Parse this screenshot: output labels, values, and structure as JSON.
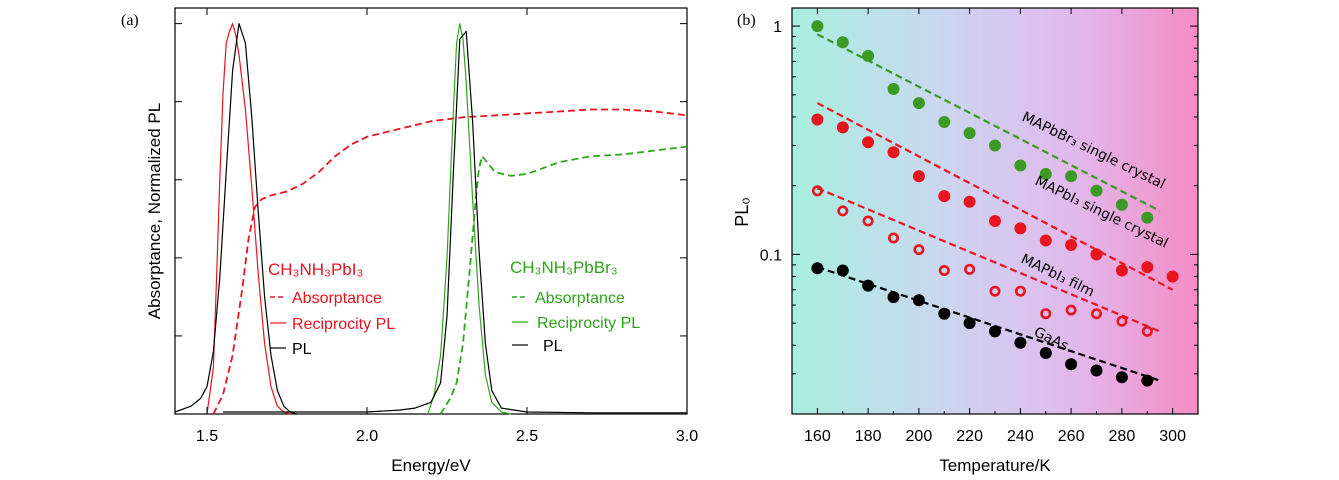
{
  "chart_data": [
    {
      "panel_label": "(a)",
      "type": "line",
      "xlabel": "Energy/eV",
      "ylabel": "Absorptance, Normalized PL",
      "xlim": [
        1.4,
        3.0
      ],
      "ylim": [
        0,
        1.04
      ],
      "x_ticks": [
        1.5,
        2.0,
        2.5,
        3.0
      ],
      "x_tick_labels": [
        "1.5",
        "2.0",
        "2.5",
        "3.0"
      ],
      "y_ticks": [
        0.2,
        0.4,
        0.6,
        0.8,
        1.0
      ],
      "y_tick_labels_shown": false,
      "colors": {
        "mapbi": "#e8141e",
        "mapbbr": "#2ea51a",
        "pl": "#000000"
      },
      "legends": [
        {
          "title": "CH₃NH₃PbI₃",
          "color": "#e8141e",
          "entries": [
            {
              "label": "Absorptance",
              "style": "dashed"
            },
            {
              "label": "Reciprocity PL",
              "style": "solid"
            },
            {
              "label": "PL",
              "style": "solid",
              "color": "#000000"
            }
          ]
        },
        {
          "title": "CH₃NH₃PbBr₃",
          "color": "#2ea51a",
          "entries": [
            {
              "label": "Absorptance",
              "style": "dashed"
            },
            {
              "label": "Reciprocity PL",
              "style": "solid"
            },
            {
              "label": "PL",
              "style": "solid",
              "color": "#000000"
            }
          ]
        }
      ],
      "series": [
        {
          "material": "CH3NH3PbI3",
          "kind": "Absorptance",
          "style": "dashed",
          "color": "#e8141e",
          "x": [
            1.52,
            1.55,
            1.58,
            1.61,
            1.63,
            1.65,
            1.67,
            1.7,
            1.75,
            1.8,
            1.85,
            1.9,
            1.95,
            2.0,
            2.1,
            2.2,
            2.3,
            2.4,
            2.5,
            2.6,
            2.7,
            2.8,
            2.9,
            3.0
          ],
          "y": [
            0.0,
            0.05,
            0.15,
            0.32,
            0.45,
            0.53,
            0.55,
            0.56,
            0.57,
            0.59,
            0.62,
            0.66,
            0.69,
            0.71,
            0.73,
            0.75,
            0.76,
            0.765,
            0.77,
            0.775,
            0.78,
            0.78,
            0.775,
            0.765
          ]
        },
        {
          "material": "CH3NH3PbI3",
          "kind": "Reciprocity PL",
          "style": "solid",
          "color": "#e8141e",
          "x": [
            1.5,
            1.52,
            1.53,
            1.54,
            1.55,
            1.56,
            1.57,
            1.58,
            1.59,
            1.6,
            1.62,
            1.64,
            1.66,
            1.68,
            1.7,
            1.72,
            1.74,
            1.76
          ],
          "y": [
            0.0,
            0.12,
            0.35,
            0.6,
            0.82,
            0.95,
            0.98,
            1.0,
            0.97,
            0.92,
            0.78,
            0.58,
            0.36,
            0.18,
            0.07,
            0.02,
            0.005,
            0.0
          ]
        },
        {
          "material": "CH3NH3PbI3",
          "kind": "PL",
          "style": "solid",
          "color": "#000000",
          "x": [
            1.4,
            1.45,
            1.48,
            1.5,
            1.52,
            1.54,
            1.56,
            1.58,
            1.6,
            1.62,
            1.64,
            1.66,
            1.68,
            1.7,
            1.72,
            1.74,
            1.76,
            1.78
          ],
          "y": [
            0.005,
            0.02,
            0.04,
            0.07,
            0.16,
            0.35,
            0.62,
            0.88,
            1.0,
            0.95,
            0.76,
            0.52,
            0.3,
            0.15,
            0.06,
            0.02,
            0.005,
            0.0
          ]
        },
        {
          "material": "CH3NH3PbBr3",
          "kind": "Absorptance",
          "style": "dashed",
          "color": "#2ea51a",
          "x": [
            2.23,
            2.26,
            2.28,
            2.3,
            2.32,
            2.34,
            2.35,
            2.36,
            2.38,
            2.4,
            2.45,
            2.5,
            2.55,
            2.6,
            2.7,
            2.8,
            2.9,
            3.0
          ],
          "y": [
            0.0,
            0.04,
            0.08,
            0.18,
            0.36,
            0.55,
            0.63,
            0.66,
            0.64,
            0.62,
            0.61,
            0.615,
            0.63,
            0.645,
            0.66,
            0.665,
            0.675,
            0.685
          ]
        },
        {
          "material": "CH3NH3PbBr3",
          "kind": "Reciprocity PL",
          "style": "solid",
          "color": "#2ea51a",
          "x": [
            2.19,
            2.21,
            2.23,
            2.25,
            2.27,
            2.28,
            2.29,
            2.3,
            2.31,
            2.33,
            2.35,
            2.37,
            2.39,
            2.42,
            2.45
          ],
          "y": [
            0.0,
            0.05,
            0.15,
            0.4,
            0.78,
            0.95,
            1.0,
            0.96,
            0.85,
            0.55,
            0.28,
            0.1,
            0.03,
            0.005,
            0.0
          ]
        },
        {
          "material": "CH3NH3PbBr3",
          "kind": "PL",
          "style": "solid",
          "color": "#000000",
          "x": [
            1.55,
            1.8,
            2.0,
            2.1,
            2.15,
            2.2,
            2.23,
            2.25,
            2.27,
            2.29,
            2.31,
            2.33,
            2.35,
            2.37,
            2.39,
            2.42,
            2.5,
            2.7,
            3.0
          ],
          "y": [
            0.005,
            0.005,
            0.005,
            0.01,
            0.015,
            0.03,
            0.08,
            0.25,
            0.62,
            0.96,
            0.98,
            0.75,
            0.42,
            0.18,
            0.06,
            0.015,
            0.005,
            0.003,
            0.003
          ]
        }
      ]
    },
    {
      "panel_label": "(b)",
      "type": "scatter",
      "xlabel": "Temperature/K",
      "ylabel": "PL₀",
      "xlim": [
        150,
        310
      ],
      "ylim": [
        0.02,
        1.2
      ],
      "y_scale": "log",
      "x_ticks": [
        160,
        180,
        200,
        220,
        240,
        260,
        280,
        300
      ],
      "x_tick_labels": [
        "160",
        "180",
        "200",
        "220",
        "240",
        "260",
        "280",
        "300"
      ],
      "y_ticks": [
        0.1,
        1
      ],
      "y_tick_labels": [
        "0.1",
        "1"
      ],
      "background": {
        "type": "horizontal-gradient",
        "colors": [
          "#a8efdf",
          "#c9d8ef",
          "#e2b8ec",
          "#f48cc4"
        ]
      },
      "series": [
        {
          "name": "MAPbBr₃ single crystal",
          "marker": "filled-circle",
          "color": "#3a9a24",
          "x": [
            160,
            170,
            180,
            190,
            200,
            210,
            220,
            230,
            240,
            250,
            260,
            270,
            280,
            290
          ],
          "y": [
            1.0,
            0.85,
            0.74,
            0.53,
            0.46,
            0.38,
            0.34,
            0.3,
            0.245,
            0.225,
            0.22,
            0.19,
            0.165,
            0.145
          ],
          "fit": {
            "x": [
              160,
              295
            ],
            "y": [
              0.92,
              0.155
            ]
          }
        },
        {
          "name": "MAPbI₃ single crystal",
          "marker": "filled-circle",
          "color": "#e8141e",
          "x": [
            160,
            170,
            180,
            190,
            200,
            210,
            220,
            230,
            240,
            250,
            260,
            270,
            280,
            290,
            300
          ],
          "y": [
            0.39,
            0.36,
            0.31,
            0.28,
            0.22,
            0.18,
            0.17,
            0.14,
            0.13,
            0.115,
            0.11,
            0.1,
            0.085,
            0.088,
            0.08
          ],
          "fit": {
            "x": [
              160,
              300
            ],
            "y": [
              0.46,
              0.07
            ]
          }
        },
        {
          "name": "MAPbI₃ film",
          "marker": "open-circle",
          "color": "#e8141e",
          "x": [
            160,
            170,
            180,
            190,
            200,
            210,
            220,
            230,
            240,
            250,
            260,
            270,
            280,
            290
          ],
          "y": [
            0.19,
            0.155,
            0.14,
            0.118,
            0.105,
            0.085,
            0.086,
            0.069,
            0.069,
            0.055,
            0.057,
            0.055,
            0.051,
            0.046
          ],
          "fit": {
            "x": [
              160,
              295
            ],
            "y": [
              0.195,
              0.046
            ]
          }
        },
        {
          "name": "GaAs",
          "marker": "filled-circle",
          "color": "#000000",
          "x": [
            160,
            170,
            180,
            190,
            200,
            210,
            220,
            230,
            240,
            250,
            260,
            270,
            280,
            290
          ],
          "y": [
            0.087,
            0.085,
            0.073,
            0.065,
            0.063,
            0.055,
            0.05,
            0.046,
            0.041,
            0.037,
            0.033,
            0.031,
            0.029,
            0.028
          ],
          "fit": {
            "x": [
              160,
              295
            ],
            "y": [
              0.088,
              0.028
            ]
          }
        }
      ]
    }
  ]
}
